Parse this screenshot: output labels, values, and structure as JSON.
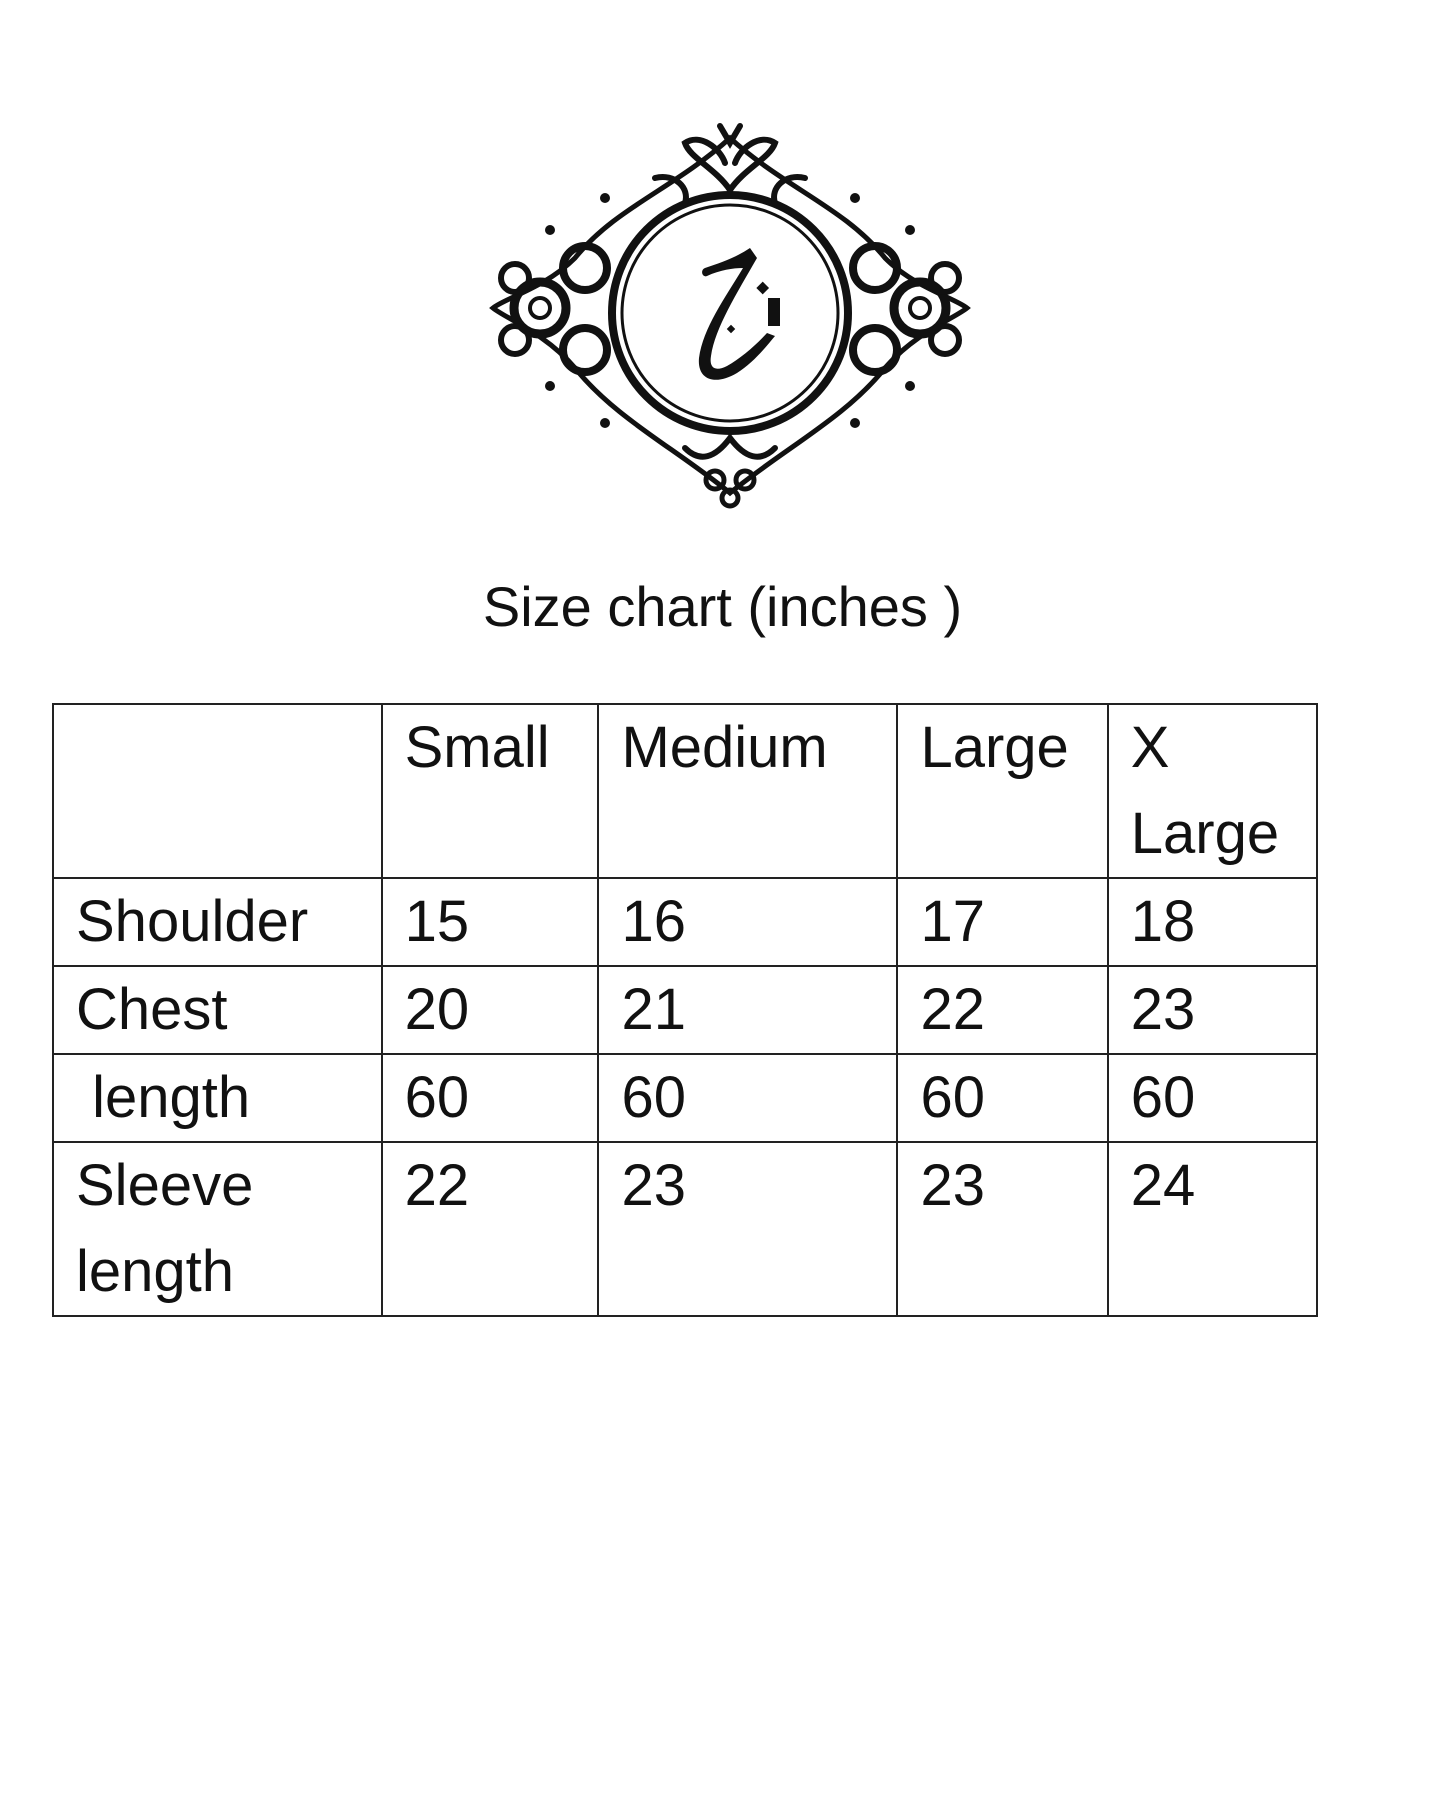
{
  "logo": {
    "description_text": "زج",
    "icon": "ornamental-frame-monogram"
  },
  "title": "Size chart (inches )",
  "table": {
    "headers": [
      "",
      "Small",
      "Medium",
      "Large",
      "X Large"
    ],
    "rows": [
      {
        "label": "Shoulder",
        "values": [
          "15",
          "16",
          "17",
          "18"
        ]
      },
      {
        "label": "Chest",
        "values": [
          "20",
          "21",
          "22",
          "23"
        ]
      },
      {
        "label": " length",
        "values": [
          "60",
          "60",
          "60",
          "60"
        ]
      },
      {
        "label": "Sleeve length",
        "values": [
          "22",
          "23",
          "23",
          "24"
        ]
      }
    ]
  }
}
